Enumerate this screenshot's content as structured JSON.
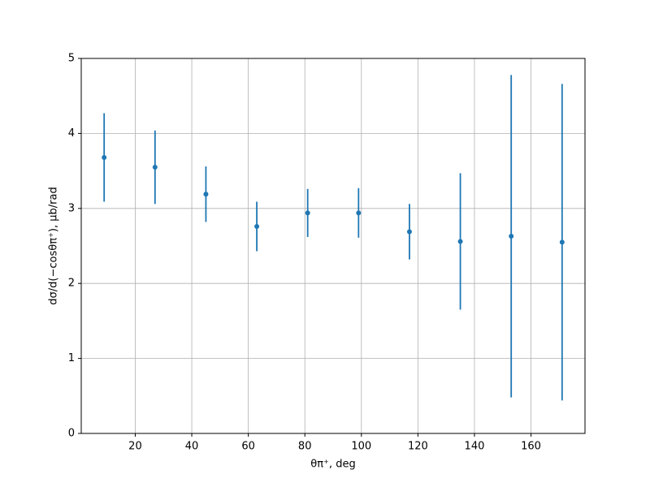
{
  "chart_data": {
    "type": "errorbar",
    "x_label": "θπ⁺, deg",
    "y_label": "dσ/d(−cosθπ⁺), μb/rad",
    "x": [
      9,
      27,
      45,
      63,
      81,
      99,
      117,
      135,
      153,
      171
    ],
    "series": [
      {
        "color": "#1f77b4",
        "values": [
          3.68,
          3.55,
          3.19,
          2.76,
          2.94,
          2.94,
          2.69,
          2.56,
          2.63,
          2.55
        ],
        "errors": [
          0.59,
          0.49,
          0.37,
          0.33,
          0.32,
          0.33,
          0.37,
          0.91,
          2.15,
          2.11
        ]
      }
    ],
    "xlim": [
      0.9,
      179.1
    ],
    "xticks": [
      20,
      40,
      60,
      80,
      100,
      120,
      140,
      160
    ],
    "ylim": [
      0,
      5
    ],
    "yticks": [
      0,
      1,
      2,
      3,
      4,
      5
    ],
    "grid": true
  }
}
